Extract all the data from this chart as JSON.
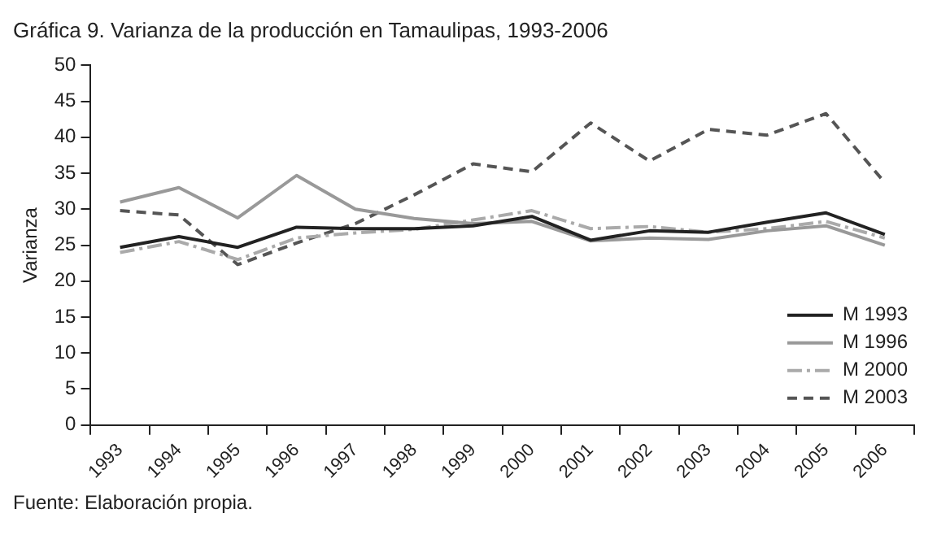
{
  "chart_data": {
    "type": "line",
    "title": "Gráfica 9. Varianza de la producción en Tamaulipas, 1993-2006",
    "ylabel": "Varianza",
    "annotations": [
      "Fuente: Elaboración propia."
    ],
    "categories": [
      "1993",
      "1994",
      "1995",
      "1996",
      "1997",
      "1998",
      "1999",
      "2000",
      "2001",
      "2002",
      "2003",
      "2004",
      "2005",
      "2006"
    ],
    "ylim": [
      0,
      50
    ],
    "yticks": [
      0,
      5,
      10,
      15,
      20,
      25,
      30,
      35,
      40,
      45,
      50
    ],
    "grid": false,
    "legend": "bottom right",
    "marker": "none",
    "series": [
      {
        "name": "M 1993",
        "color": "#222222",
        "line_style": "solid",
        "values": [
          24.7,
          26.2,
          24.7,
          27.5,
          27.3,
          27.3,
          27.7,
          29,
          25.7,
          27,
          26.8,
          28.2,
          29.5,
          26.5
        ]
      },
      {
        "name": "M 1996",
        "color": "#999999",
        "line_style": "solid",
        "values": [
          31,
          33,
          28.8,
          34.7,
          30,
          28.7,
          28,
          28.3,
          25.6,
          26,
          25.8,
          27,
          27.7,
          25
        ]
      },
      {
        "name": "M 2000",
        "color": "#aaaaaa",
        "line_style": "dashdot",
        "values": [
          24,
          25.5,
          23,
          26,
          26.7,
          27.2,
          28.5,
          29.8,
          27.3,
          27.6,
          26.8,
          27.3,
          28.3,
          26
        ]
      },
      {
        "name": "M 2003",
        "color": "#555555",
        "line_style": "dashed",
        "values": [
          29.8,
          29.2,
          22.3,
          25.3,
          28,
          32,
          36.3,
          35.2,
          42,
          36.7,
          41.1,
          40.3,
          43.3,
          33.7
        ]
      }
    ]
  }
}
